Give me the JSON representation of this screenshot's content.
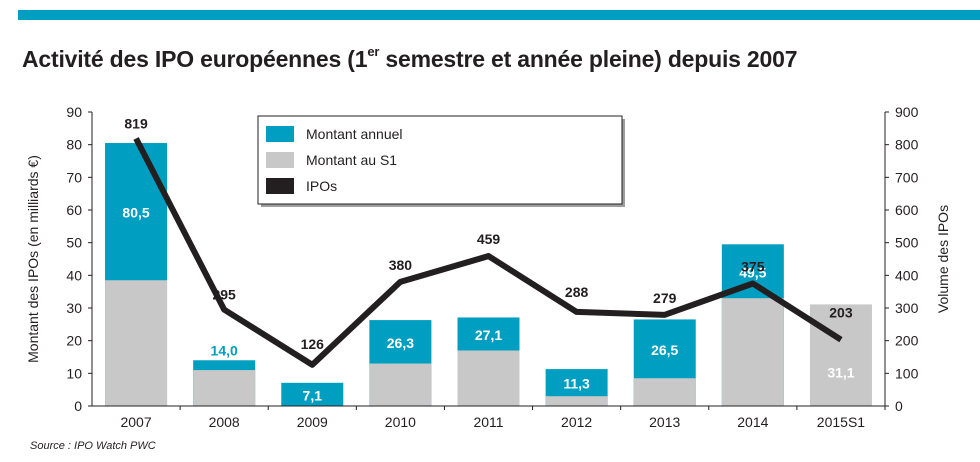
{
  "header": {
    "accent_color": "#009ec1",
    "title_part1": "Activité des IPO européennes (1",
    "title_sup": "er",
    "title_part2": " semestre et année pleine) depuis 2007"
  },
  "source": "Source : IPO Watch PWC",
  "chart_data": {
    "type": "bar",
    "categories": [
      "2007",
      "2008",
      "2009",
      "2010",
      "2011",
      "2012",
      "2013",
      "2014",
      "2015S1"
    ],
    "series": [
      {
        "name": "Montant annuel",
        "type": "bar",
        "axis": "left",
        "color": "#009ec1",
        "values": [
          80.5,
          14.0,
          7.1,
          26.3,
          27.1,
          11.3,
          26.5,
          49.5,
          null
        ],
        "labels": [
          "80,5",
          "14,0",
          "7,1",
          "26,3",
          "27,1",
          "11,3",
          "26,5",
          "49,5",
          ""
        ]
      },
      {
        "name": "Montant au S1",
        "type": "bar",
        "axis": "left",
        "color": "#c8c8c8",
        "values": [
          38.5,
          11,
          0,
          13,
          17,
          3,
          8.5,
          33,
          31.1
        ],
        "labels": [
          "",
          "",
          "",
          "",
          "",
          "",
          "",
          "",
          "31,1"
        ]
      },
      {
        "name": "IPOs",
        "type": "line",
        "axis": "right",
        "color": "#231f20",
        "values": [
          819,
          295,
          126,
          380,
          459,
          288,
          279,
          375,
          203
        ],
        "labels": [
          "819",
          "295",
          "126",
          "380",
          "459",
          "288",
          "279",
          "375",
          "203"
        ]
      }
    ],
    "ylabel": "Montant des  IPOs (en milliards €)",
    "y2label": "Volume des IPOs",
    "ylim": [
      0,
      90
    ],
    "y2lim": [
      0,
      900
    ],
    "yticks": [
      "0",
      "10",
      "20",
      "30",
      "40",
      "50",
      "60",
      "70",
      "80",
      "90"
    ],
    "y2ticks": [
      "0",
      "100",
      "200",
      "300",
      "400",
      "500",
      "600",
      "700",
      "800",
      "900"
    ],
    "legend": "top-center",
    "grid": false
  }
}
